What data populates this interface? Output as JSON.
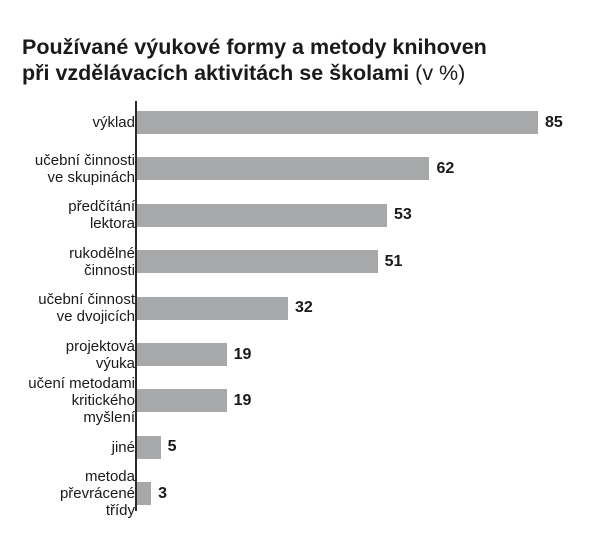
{
  "title": {
    "line1": "Používané výukové formy a metody knihoven",
    "line2": "při vzdělávacích aktivitách se školami",
    "unit": " (v %)"
  },
  "chart_data": {
    "type": "bar",
    "orientation": "horizontal",
    "categories": [
      "výklad",
      "učební činnosti\nve skupinách",
      "předčítání\nlektora",
      "rukodělné\nčinnosti",
      "učební činnost\nve dvojicích",
      "projektová\nvýuka",
      "učení metodami\nkritického\nmyšlení",
      "jiné",
      "metoda\npřevrácené\ntřídy"
    ],
    "values": [
      85,
      62,
      53,
      51,
      32,
      19,
      19,
      5,
      3
    ],
    "xlim": [
      0,
      85
    ],
    "grid": false,
    "bar_color": "#a7a8aa",
    "data_labels": true
  }
}
